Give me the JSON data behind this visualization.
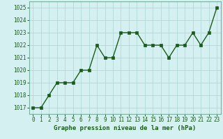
{
  "x": [
    0,
    1,
    2,
    3,
    4,
    5,
    6,
    7,
    8,
    9,
    10,
    11,
    12,
    13,
    14,
    15,
    16,
    17,
    18,
    19,
    20,
    21,
    22,
    23
  ],
  "y": [
    1017,
    1017,
    1018,
    1019,
    1019,
    1019,
    1020,
    1020,
    1022,
    1021,
    1021,
    1023,
    1023,
    1023,
    1022,
    1022,
    1022,
    1021,
    1022,
    1022,
    1023,
    1022,
    1023,
    1025
  ],
  "line_color": "#1a5c1a",
  "marker_color": "#1a5c1a",
  "bg_color": "#d4f0f0",
  "grid_color": "#b0d8d8",
  "border_color": "#7ab0a0",
  "xlabel": "Graphe pression niveau de la mer (hPa)",
  "ylim": [
    1016.5,
    1025.5
  ],
  "xlim": [
    -0.5,
    23.5
  ],
  "yticks": [
    1017,
    1018,
    1019,
    1020,
    1021,
    1022,
    1023,
    1024,
    1025
  ],
  "xticks": [
    0,
    1,
    2,
    3,
    4,
    5,
    6,
    7,
    8,
    9,
    10,
    11,
    12,
    13,
    14,
    15,
    16,
    17,
    18,
    19,
    20,
    21,
    22,
    23
  ],
  "xlabel_fontsize": 6.5,
  "tick_fontsize": 5.5,
  "line_width": 1.0,
  "marker_size": 2.5
}
